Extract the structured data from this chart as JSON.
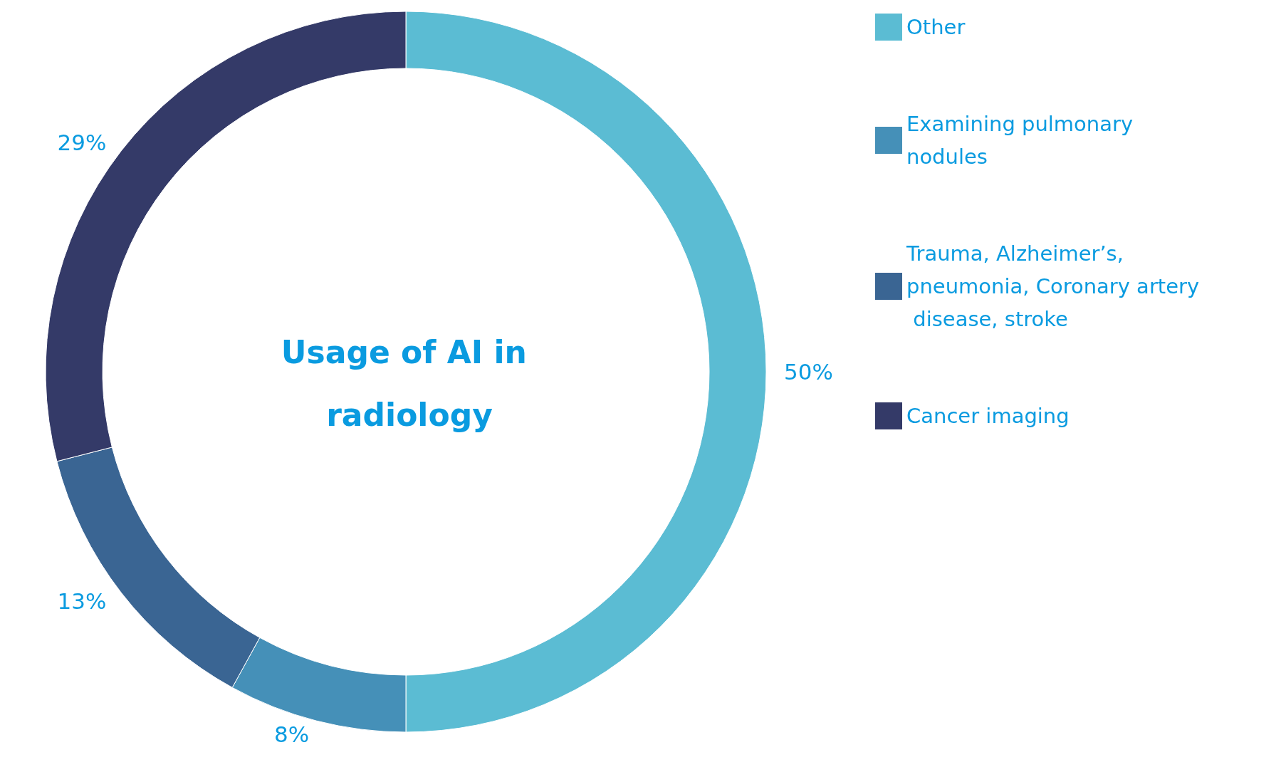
{
  "chart_data": {
    "type": "donut",
    "title": "Usage of AI in radiology",
    "categories": [
      "Other",
      "Examining pulmonary nodules",
      "Trauma, Alzheimer’s, pneumonia, Coronary artery disease, stroke",
      "Cancer imaging"
    ],
    "values": [
      50,
      8,
      13,
      29
    ],
    "colors": [
      "#5bbcd3",
      "#4590b8",
      "#3a6593",
      "#343a68"
    ],
    "legend": "top right",
    "value_labels": [
      "50%",
      "8%",
      "13%",
      "29%"
    ]
  }
}
